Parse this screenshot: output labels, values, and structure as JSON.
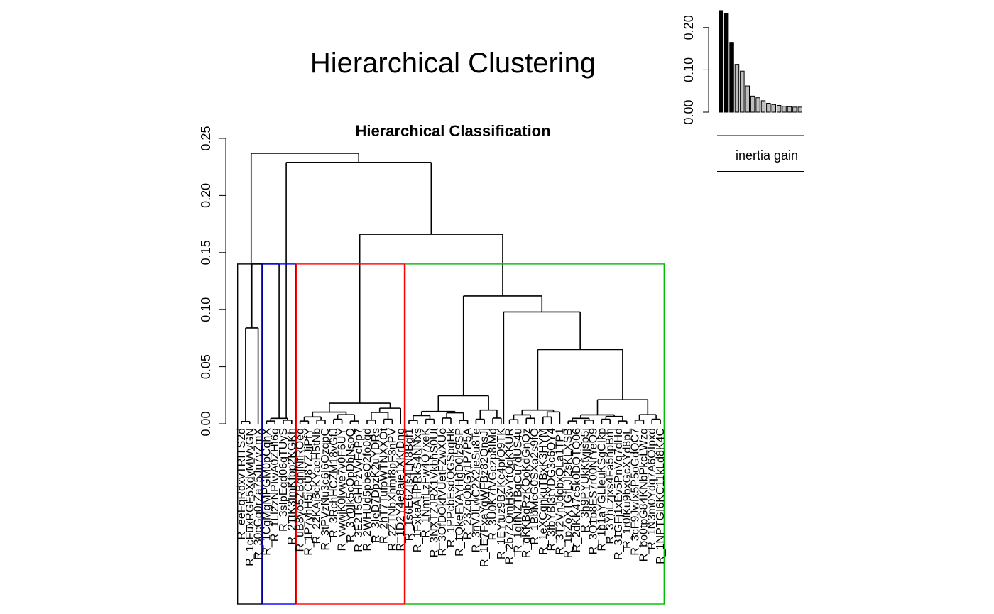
{
  "main_title": "Hierarchical Clustering",
  "chart_data": [
    {
      "type": "dendrogram",
      "title": "Hierarchical Classification",
      "ylim": [
        0,
        0.25
      ],
      "yticks": [
        "0.00",
        "0.05",
        "0.10",
        "0.15",
        "0.20",
        "0.25"
      ],
      "cut_height": 0.14,
      "n_clusters": 4,
      "cluster_colors": [
        "#000000",
        "#0000ff",
        "#ff0000",
        "#00bb00"
      ],
      "clusters": [
        {
          "color": "#000000",
          "leaves": [
            "R_eeFqRdxvTRITS2d",
            "R_1cFuxRGF5XdyMWvGN",
            "R_30cGq0rZa75Jn7vZmX"
          ]
        },
        {
          "color": "#0000ff",
          "leaves": [
            "R_1CgMgMPGM0pCqhX",
            "R_1Ll2zNPIwA0ZHI6q",
            "R_3sIpEgd06gTUyS",
            "R_21tK3ImKfbp2KGKh"
          ]
        },
        {
          "color": "#ff0000",
          "leaves": [
            "R_uB8yo5ZBqnjNfROeq",
            "R_1P7yhH5jCU8YZJiPfY",
            "R_22KAj5cKYaeH5tNb",
            "R_3tPVzNu3c6I6OzqpC",
            "R_3RchHCZM18vGfJ",
            "R_vwwjK0lvwe7v0F6UY",
            "R_3Y0Ik5cOpDbNsoQ",
            "R_3E2T5GHPzVyFcPp7",
            "R_2WHUd5pbeQ2fo0qd",
            "R_3IeD7DpzK2uYDRs",
            "R_2hT7TufpWTNXXOt",
            "R_2ZTNbXhmf8pF3nPV",
            "R_1D2Y4e8aje1XKrDnq"
          ]
        },
        {
          "color": "#00bb00",
          "leaves": [
            "R_1s6E6ZIs4LN8Bgf1",
            "R_1FxkaAHPRkS4NNxs",
            "R_1NmfLzFw4Q7xeK",
            "R_3NXTZJRX1VkbhS0Ut",
            "R_3OfDOkfVUetFZwXUo",
            "R_1PPcbEsdQGSpqHk",
            "R_1QkeFYAYHgD0lz9SP",
            "R_23ZqQbGy1P7P5A",
            "R_3nVJLwC2X2jeSu8Te",
            "R_1E7FxaYqWFBz82QnsJj",
            "R_3U0K7fVGezp8IMq",
            "R_1EYtuz9BZKc4prQ9TK",
            "R_2b7ZQmH3vYtQqKKUR",
            "R_1gIfNZTBqCu7dUS4u",
            "R_qKKBgRzKQoKdGnOz",
            "R_1BbMcG0SXa2s9fQ",
            "R_1eXCqnkuTBxK3HYM",
            "R_3fbYBl3tYDG3c6QY4",
            "R_3T2VnJdqbxQLa1TP1",
            "R_1pZoXTGfLJl2sKLXSB",
            "R_2dKK47c5k0DQTQ06",
            "R_3h9PYUkKtyjjsp5i",
            "R_3Q1b8ES7r00NrYeQ9",
            "R_1p1aYGLIeuKSgCIkp",
            "R_3YhLzjxs4Fa5npBm",
            "R_31GFj1xEv5PnVq7dHd",
            "R_1r0lKu9bxGcXYd8pL",
            "R_3cF9Jwfx5P5oGdQC7",
            "R_bo0tpG84KNbPkcLWzq",
            "R_1N3m0Ydq7A6QIpxd",
            "R_1NPTGI6KC11kLd8K4C"
          ]
        }
      ],
      "merge_heights": [
        0.237,
        0.229,
        0.166,
        0.112,
        0.098,
        0.065,
        0.041,
        0.035,
        0.03,
        0.02,
        0.017,
        0.013,
        0.012,
        0.01,
        0.008
      ]
    },
    {
      "type": "bar",
      "title": "",
      "xlabel": "inertia gain",
      "ylabel": "",
      "ylim": [
        0,
        0.25
      ],
      "yticks": [
        "0.00",
        "0.10",
        "0.20"
      ],
      "values": [
        0.24,
        0.234,
        0.165,
        0.113,
        0.097,
        0.062,
        0.038,
        0.034,
        0.027,
        0.021,
        0.018,
        0.016,
        0.014,
        0.013,
        0.012,
        0.012
      ],
      "highlighted_count": 3
    }
  ]
}
